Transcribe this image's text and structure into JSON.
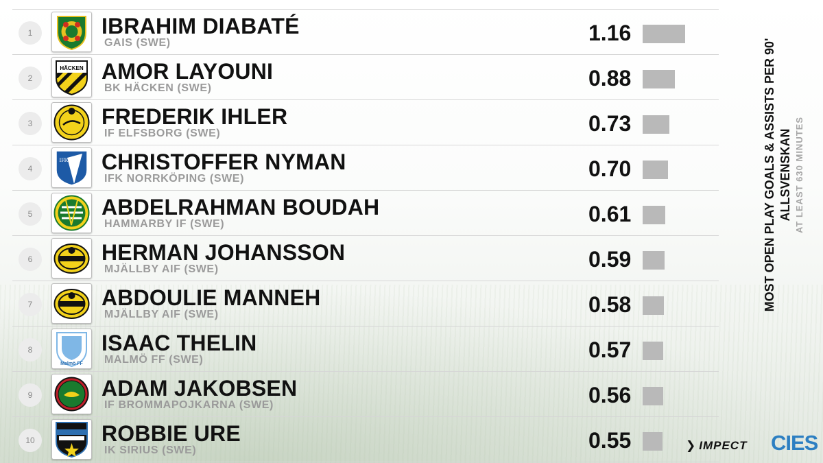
{
  "chart_data": {
    "type": "bar",
    "title": "MOST OPEN PLAY GOALS & ASSISTS PER 90'",
    "subtitle": "ALLSVENSKAN",
    "note": "AT LEAST 630 MINUTES",
    "orientation": "horizontal",
    "categories": [
      "IBRAHIM DIABATÉ",
      "AMOR LAYOUNI",
      "FREDERIK IHLER",
      "CHRISTOFFER NYMAN",
      "ABDELRAHMAN BOUDAH",
      "HERMAN JOHANSSON",
      "ABDOULIE MANNEH",
      "ISAAC THELIN",
      "ADAM JAKOBSEN",
      "ROBBIE URE"
    ],
    "values": [
      1.16,
      0.88,
      0.73,
      0.7,
      0.61,
      0.59,
      0.58,
      0.57,
      0.56,
      0.55
    ],
    "value_labels": [
      "1.16",
      "0.88",
      "0.73",
      "0.70",
      "0.61",
      "0.59",
      "0.58",
      "0.57",
      "0.56",
      "0.55"
    ],
    "ranks": [
      "1",
      "2",
      "3",
      "4",
      "5",
      "6",
      "7",
      "8",
      "9",
      "10"
    ],
    "teams": [
      "GAIS (SWE)",
      "BK HÄCKEN (SWE)",
      "IF ELFSBORG (SWE)",
      "IFK NORRKÖPING (SWE)",
      "HAMMARBY IF (SWE)",
      "MJÄLLBY AIF (SWE)",
      "MJÄLLBY AIF (SWE)",
      "MALMÖ FF (SWE)",
      "IF BROMMAPOJKARNA (SWE)",
      "IK SIRIUS (SWE)"
    ],
    "badge_icons": [
      "gais-crest-icon",
      "hacken-crest-icon",
      "elfsborg-crest-icon",
      "norrkoping-crest-icon",
      "hammarby-crest-icon",
      "mjallby-crest-icon",
      "mjallby-crest-icon",
      "malmo-crest-icon",
      "brommapojkarna-crest-icon",
      "sirius-crest-icon"
    ],
    "bar_color": "#b9b9b9",
    "xlim": [
      0,
      1.16
    ],
    "grid": false,
    "legend": "none"
  },
  "branding": {
    "impect": "IMPECT",
    "cies": "CIES"
  }
}
